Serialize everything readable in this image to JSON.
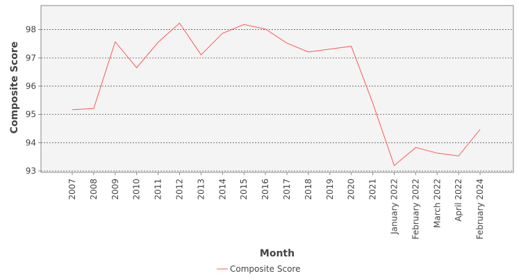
{
  "chart_data": {
    "type": "line",
    "title": "",
    "xlabel": "Month",
    "ylabel": "Composite Score",
    "categories": [
      "2007",
      "2008",
      "2009",
      "2010",
      "2011",
      "2012",
      "2013",
      "2014",
      "2015",
      "2016",
      "2017",
      "2018",
      "2019",
      "2020",
      "2021",
      "January 2022",
      "February 2022",
      "March 2022",
      "April 2022",
      "February 2024"
    ],
    "series": [
      {
        "name": "Composite Score",
        "color": "#ff5555",
        "values": [
          95.17,
          95.21,
          97.57,
          96.65,
          97.55,
          98.23,
          97.11,
          97.87,
          98.18,
          98.02,
          97.52,
          97.21,
          97.31,
          97.41,
          95.4,
          93.19,
          93.83,
          93.63,
          93.53,
          94.47
        ]
      }
    ],
    "ylim": [
      92.95,
      98.85
    ],
    "yticks": [
      93,
      94,
      95,
      96,
      97,
      98
    ],
    "grid": true,
    "legend_position": "bottom"
  }
}
